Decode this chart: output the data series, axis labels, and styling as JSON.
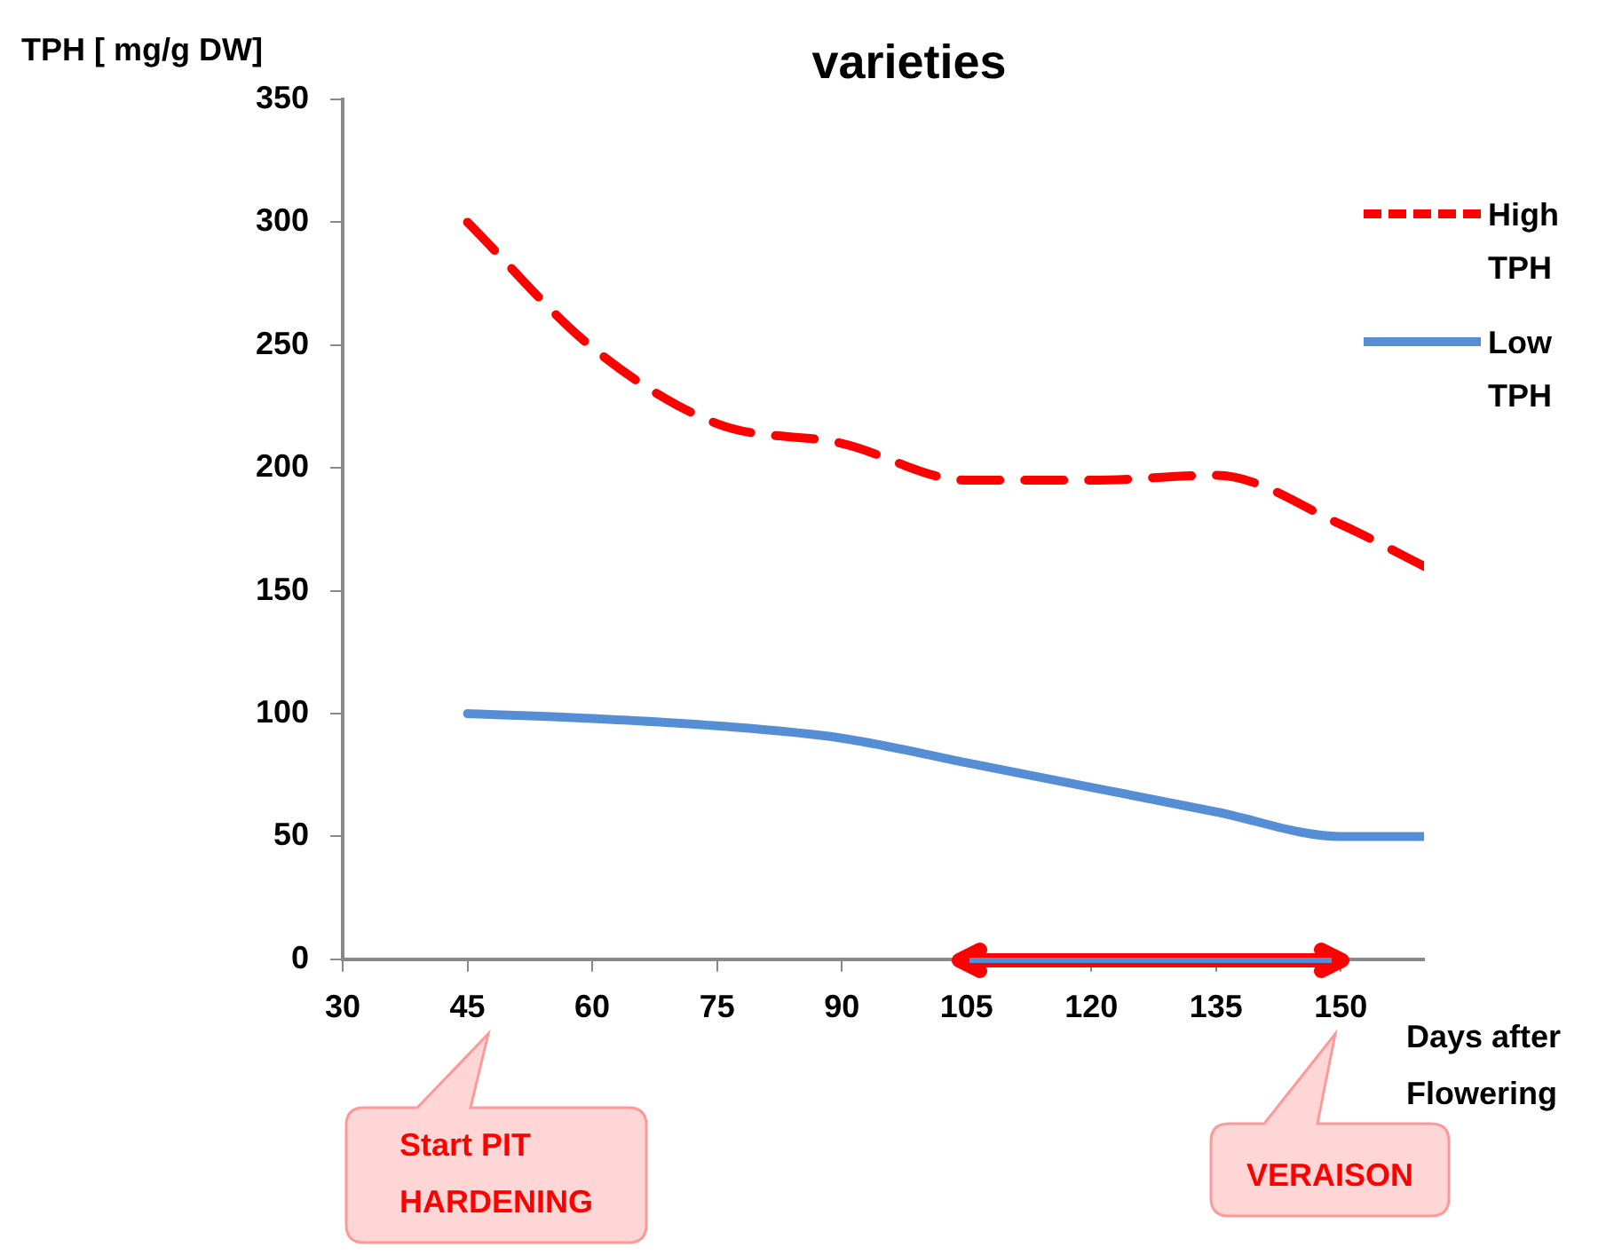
{
  "chart_data": {
    "type": "line",
    "title": "varieties",
    "xlabel": "Days after Flowering",
    "ylabel": "TPH [ mg/g DW]",
    "xlim": [
      30,
      160
    ],
    "xticks": [
      30,
      45,
      60,
      75,
      90,
      105,
      120,
      135,
      150
    ],
    "ylim": [
      0,
      350
    ],
    "yticks": [
      0,
      50,
      100,
      150,
      200,
      250,
      300,
      350
    ],
    "grid": false,
    "legend": "top right",
    "marker": "none",
    "series": [
      {
        "name": "High TPH",
        "color": "#ff0000",
        "line_style": "dashed",
        "x": [
          45,
          60,
          75,
          90,
          105,
          120,
          135,
          150,
          160
        ],
        "values": [
          300,
          249,
          218,
          210,
          195,
          195,
          197,
          177,
          160
        ]
      },
      {
        "name": "Low TPH",
        "color": "#558ed5",
        "line_style": "solid",
        "x": [
          45,
          60,
          75,
          90,
          105,
          120,
          135,
          150,
          160
        ],
        "values": [
          100,
          98,
          95,
          90,
          80,
          70,
          60,
          50,
          50
        ]
      }
    ],
    "annotations": [
      "Start PIT HARDENING",
      "VERAISON"
    ]
  }
}
